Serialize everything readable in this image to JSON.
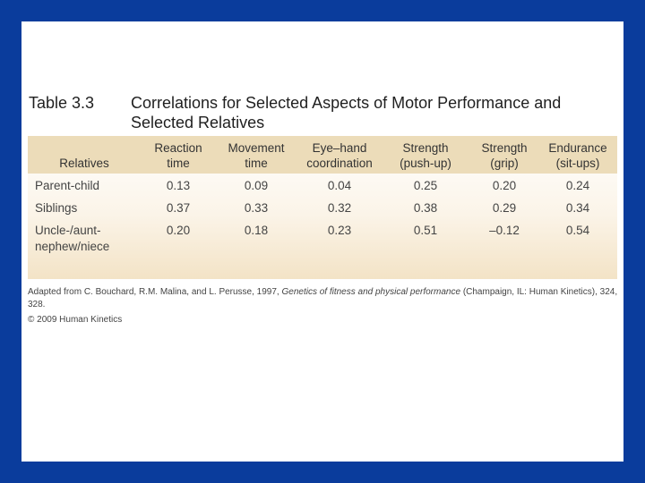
{
  "caption": {
    "label": "Table 3.3",
    "title": "Correlations for Selected Aspects of Motor Performance and Selected Relatives"
  },
  "table": {
    "headers": [
      "Relatives",
      "Reaction time",
      "Movement time",
      "Eye–hand coordination",
      "Strength (push-up)",
      "Strength (grip)",
      "Endurance (sit-ups)"
    ],
    "header_lines": [
      [
        "",
        "Relatives"
      ],
      [
        "Reaction",
        "time"
      ],
      [
        "Movement",
        "time"
      ],
      [
        "Eye–hand",
        "coordination"
      ],
      [
        "Strength",
        "(push-up)"
      ],
      [
        "Strength",
        "(grip)"
      ],
      [
        "Endurance",
        "(sit-ups)"
      ]
    ],
    "rows": [
      {
        "label": [
          "Parent-child"
        ],
        "values": [
          "0.13",
          "0.09",
          "0.04",
          "0.25",
          "0.20",
          "0.24"
        ]
      },
      {
        "label": [
          "Siblings"
        ],
        "values": [
          "0.37",
          "0.33",
          "0.32",
          "0.38",
          "0.29",
          "0.34"
        ]
      },
      {
        "label": [
          "Uncle-/aunt-",
          "nephew/niece"
        ],
        "values": [
          "0.20",
          "0.18",
          "0.23",
          "0.51",
          "–0.12",
          "0.54"
        ]
      }
    ]
  },
  "source_note": {
    "prefix": "Adapted from C. Bouchard, R.M. Malina, and L. Perusse, 1997,",
    "book_title": "Genetics of fitness and physical performance",
    "suffix": "(Champaign, IL: Human Kinetics), 324, 328."
  },
  "copyright": "© 2009 Human Kinetics"
}
